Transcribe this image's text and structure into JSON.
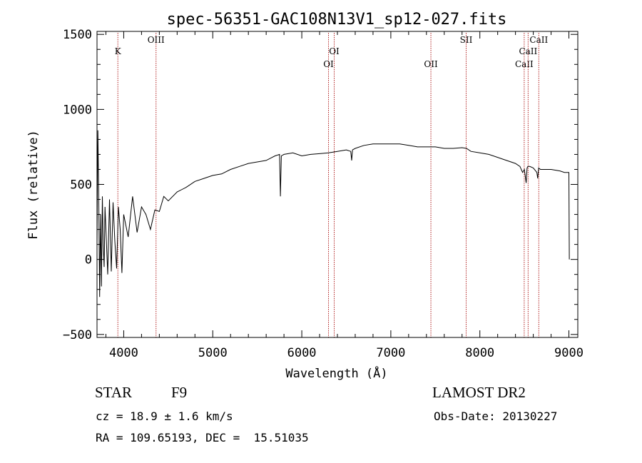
{
  "chart_data": {
    "type": "line",
    "title": "spec-56351-GAC108N13V1_sp12-027.fits",
    "xlabel": "Wavelength (Å)",
    "ylabel": "Flux (relative)",
    "xlim": [
      3700,
      9100
    ],
    "ylim": [
      -520,
      1520
    ],
    "xticks": [
      4000,
      5000,
      6000,
      7000,
      8000,
      9000
    ],
    "xtick_labels": [
      "4000",
      "5000",
      "6000",
      "7000",
      "8000",
      "9000"
    ],
    "yticks": [
      -500,
      0,
      500,
      1000,
      1500
    ],
    "ytick_labels": [
      "−500",
      "0",
      "500",
      "1000",
      "1500"
    ],
    "grid": false,
    "series": [
      {
        "name": "flux",
        "x": [
          3700,
          3710,
          3720,
          3730,
          3740,
          3750,
          3760,
          3770,
          3780,
          3790,
          3800,
          3820,
          3840,
          3860,
          3880,
          3900,
          3920,
          3940,
          3960,
          3980,
          4000,
          4050,
          4100,
          4150,
          4200,
          4250,
          4300,
          4350,
          4400,
          4450,
          4500,
          4600,
          4700,
          4800,
          4900,
          5000,
          5100,
          5200,
          5300,
          5400,
          5500,
          5600,
          5700,
          5750,
          5760,
          5770,
          5800,
          5900,
          6000,
          6100,
          6200,
          6300,
          6400,
          6500,
          6550,
          6560,
          6570,
          6600,
          6700,
          6800,
          6900,
          7000,
          7100,
          7200,
          7300,
          7400,
          7500,
          7600,
          7700,
          7800,
          7850,
          7900,
          8000,
          8100,
          8200,
          8300,
          8400,
          8450,
          8480,
          8500,
          8520,
          8530,
          8540,
          8560,
          8600,
          8640,
          8650,
          8660,
          8680,
          8700,
          8800,
          8900,
          8950,
          9000,
          9005
        ],
        "y": [
          100,
          860,
          380,
          -250,
          300,
          -180,
          420,
          100,
          -50,
          350,
          200,
          -100,
          400,
          -80,
          380,
          120,
          -60,
          350,
          200,
          -90,
          300,
          150,
          420,
          180,
          350,
          300,
          200,
          330,
          320,
          420,
          390,
          450,
          480,
          520,
          540,
          560,
          570,
          600,
          620,
          640,
          650,
          660,
          690,
          700,
          420,
          690,
          700,
          710,
          690,
          700,
          705,
          710,
          720,
          730,
          720,
          660,
          730,
          740,
          760,
          770,
          770,
          770,
          770,
          760,
          750,
          750,
          750,
          740,
          740,
          745,
          740,
          720,
          710,
          700,
          680,
          660,
          640,
          620,
          580,
          600,
          510,
          610,
          620,
          620,
          610,
          580,
          540,
          610,
          600,
          600,
          600,
          590,
          580,
          580,
          0
        ]
      }
    ],
    "annotations": [
      {
        "label": "K",
        "x": 3934,
        "row": 1
      },
      {
        "label": "OIII",
        "x": 4363,
        "row": 0
      },
      {
        "label": "OI",
        "x": 6300,
        "row": 2
      },
      {
        "label": "OI",
        "x": 6364,
        "row": 1
      },
      {
        "label": "OII",
        "x": 7450,
        "row": 2
      },
      {
        "label": "SII",
        "x": 7846,
        "row": 0
      },
      {
        "label": "CaII",
        "x": 8498,
        "row": 2
      },
      {
        "label": "CaII",
        "x": 8542,
        "row": 1
      },
      {
        "label": "CaII",
        "x": 8662,
        "row": 0
      }
    ]
  },
  "info": {
    "object_class": "STAR",
    "subclass": "F9",
    "survey": "LAMOST DR2",
    "cz": "cz = 18.9 ± 1.6 km/s",
    "obs_date": "Obs-Date: 20130227",
    "coords": "RA = 109.65193, DEC =  15.51035"
  },
  "colors": {
    "line_marker": "#b22222",
    "spectrum": "#000000"
  }
}
